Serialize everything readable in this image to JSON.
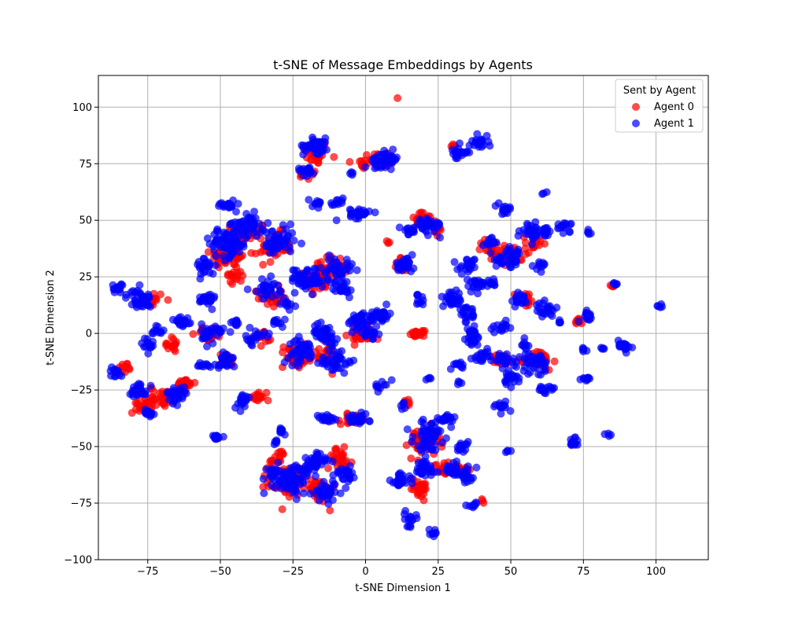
{
  "chart_data": {
    "type": "scatter",
    "title": "t-SNE of Message Embeddings by Agents",
    "xlabel": "t-SNE Dimension 1",
    "ylabel": "t-SNE Dimension 2",
    "xlim": [
      -92,
      118
    ],
    "ylim": [
      -100,
      114
    ],
    "xticks": [
      -75,
      -50,
      -25,
      0,
      25,
      50,
      75,
      100
    ],
    "yticks": [
      -100,
      -75,
      -50,
      -25,
      0,
      25,
      50,
      75,
      100
    ],
    "xtick_labels": [
      "−75",
      "−50",
      "−25",
      "0",
      "25",
      "50",
      "75",
      "100"
    ],
    "ytick_labels": [
      "−100",
      "−75",
      "−50",
      "−25",
      "0",
      "25",
      "50",
      "75",
      "100"
    ],
    "grid": true,
    "legend": {
      "title": "Sent by Agent",
      "position": "top-right"
    },
    "series": [
      {
        "name": "Agent 0",
        "color": "#ff0000",
        "clusters": [
          [
            -17,
            80,
            4,
            5,
            40
          ],
          [
            -20,
            70,
            3,
            2,
            12
          ],
          [
            6,
            77,
            4,
            3,
            40
          ],
          [
            -1,
            75,
            2,
            3,
            12
          ],
          [
            -47,
            35,
            6,
            6,
            60
          ],
          [
            -40,
            45,
            5,
            4,
            40
          ],
          [
            -31,
            38,
            5,
            6,
            40
          ],
          [
            -33,
            16,
            4,
            4,
            30
          ],
          [
            -16,
            25,
            5,
            6,
            40
          ],
          [
            -10,
            30,
            4,
            4,
            30
          ],
          [
            -25,
            -10,
            4,
            5,
            30
          ],
          [
            -14,
            -10,
            5,
            5,
            30
          ],
          [
            -2,
            0,
            4,
            4,
            20
          ],
          [
            1,
            -2,
            2,
            2,
            10
          ],
          [
            18,
            0,
            2,
            1,
            20
          ],
          [
            8,
            40,
            1,
            1,
            3
          ],
          [
            20,
            50,
            4,
            3,
            30
          ],
          [
            25,
            45,
            2,
            2,
            10
          ],
          [
            -62,
            -22,
            3,
            2,
            20
          ],
          [
            -70,
            -28,
            4,
            4,
            30
          ],
          [
            -77,
            -32,
            3,
            3,
            20
          ],
          [
            -67,
            -5,
            2,
            3,
            15
          ],
          [
            -83,
            -15,
            2,
            2,
            10
          ],
          [
            -73,
            15,
            3,
            3,
            15
          ],
          [
            -36,
            -28,
            3,
            3,
            15
          ],
          [
            -27,
            -65,
            6,
            6,
            60
          ],
          [
            -16,
            -70,
            5,
            5,
            40
          ],
          [
            -9,
            -55,
            4,
            4,
            30
          ],
          [
            -4,
            -38,
            4,
            2,
            20
          ],
          [
            20,
            -48,
            5,
            6,
            50
          ],
          [
            18,
            -68,
            4,
            4,
            30
          ],
          [
            27,
            -60,
            3,
            3,
            20
          ],
          [
            33,
            -60,
            3,
            3,
            20
          ],
          [
            50,
            35,
            5,
            4,
            30
          ],
          [
            55,
            15,
            3,
            3,
            20
          ],
          [
            58,
            40,
            3,
            3,
            15
          ],
          [
            60,
            -12,
            4,
            4,
            30
          ],
          [
            47,
            -12,
            3,
            3,
            20
          ],
          [
            43,
            38,
            3,
            3,
            15
          ],
          [
            73,
            5,
            2,
            2,
            8
          ],
          [
            85,
            21,
            1,
            1,
            4
          ],
          [
            40,
            -74,
            1,
            1,
            3
          ],
          [
            13,
            30,
            3,
            3,
            20
          ],
          [
            -54,
            0,
            4,
            3,
            20
          ],
          [
            -48,
            -12,
            3,
            3,
            15
          ],
          [
            -35,
            -2,
            3,
            3,
            15
          ],
          [
            -30,
            -55,
            3,
            3,
            15
          ],
          [
            -45,
            25,
            3,
            3,
            15
          ],
          [
            30,
            83,
            2,
            1,
            5
          ],
          [
            14,
            -30,
            2,
            2,
            8
          ]
        ],
        "points": [
          [
            11,
            104
          ],
          [
            -47,
            45
          ]
        ]
      },
      {
        "name": "Agent 1",
        "color": "#0000ff",
        "clusters": [
          [
            -17,
            83,
            4,
            3,
            50
          ],
          [
            -20,
            72,
            3,
            2,
            20
          ],
          [
            -10,
            58,
            2,
            2,
            10
          ],
          [
            -2,
            53,
            3,
            2,
            25
          ],
          [
            -17,
            58,
            2,
            2,
            10
          ],
          [
            7,
            77,
            4,
            3,
            50
          ],
          [
            4,
            75,
            2,
            2,
            15
          ],
          [
            32,
            80,
            3,
            3,
            20
          ],
          [
            39,
            85,
            3,
            3,
            20
          ],
          [
            -5,
            70,
            1,
            1,
            4
          ],
          [
            -47,
            40,
            6,
            6,
            80
          ],
          [
            -48,
            57,
            3,
            2,
            20
          ],
          [
            -40,
            48,
            5,
            4,
            50
          ],
          [
            -30,
            40,
            5,
            6,
            50
          ],
          [
            -55,
            30,
            3,
            4,
            25
          ],
          [
            -20,
            24,
            5,
            5,
            50
          ],
          [
            -10,
            28,
            5,
            5,
            40
          ],
          [
            -34,
            20,
            4,
            4,
            30
          ],
          [
            -27,
            13,
            2,
            2,
            10
          ],
          [
            -8,
            20,
            3,
            3,
            20
          ],
          [
            -78,
            15,
            4,
            4,
            40
          ],
          [
            -85,
            20,
            2,
            2,
            15
          ],
          [
            -72,
            2,
            2,
            2,
            10
          ],
          [
            -75,
            -5,
            2,
            3,
            15
          ],
          [
            -63,
            5,
            3,
            3,
            20
          ],
          [
            -55,
            15,
            3,
            3,
            25
          ],
          [
            -52,
            0,
            4,
            4,
            30
          ],
          [
            -45,
            5,
            2,
            2,
            10
          ],
          [
            -38,
            -2,
            3,
            3,
            20
          ],
          [
            -30,
            5,
            2,
            2,
            10
          ],
          [
            -48,
            -12,
            3,
            4,
            25
          ],
          [
            -56,
            -14,
            2,
            2,
            10
          ],
          [
            -65,
            -27,
            3,
            3,
            30
          ],
          [
            -78,
            -25,
            3,
            3,
            25
          ],
          [
            -86,
            -17,
            2,
            2,
            15
          ],
          [
            -75,
            -35,
            2,
            2,
            15
          ],
          [
            -42,
            -30,
            3,
            3,
            20
          ],
          [
            -52,
            -46,
            2,
            1,
            15
          ],
          [
            -22,
            -8,
            4,
            5,
            50
          ],
          [
            -14,
            0,
            4,
            4,
            40
          ],
          [
            -10,
            -12,
            5,
            5,
            40
          ],
          [
            -2,
            5,
            4,
            4,
            40
          ],
          [
            5,
            8,
            3,
            3,
            30
          ],
          [
            2,
            0,
            2,
            2,
            15
          ],
          [
            5,
            -23,
            2,
            2,
            10
          ],
          [
            -3,
            -38,
            4,
            2,
            30
          ],
          [
            -14,
            -38,
            3,
            2,
            20
          ],
          [
            -29,
            -43,
            2,
            2,
            10
          ],
          [
            -31,
            -48,
            1,
            1,
            5
          ],
          [
            -25,
            -65,
            6,
            6,
            80
          ],
          [
            -18,
            -57,
            4,
            4,
            40
          ],
          [
            -13,
            -70,
            5,
            4,
            40
          ],
          [
            -7,
            -62,
            3,
            3,
            25
          ],
          [
            -32,
            -62,
            2,
            2,
            15
          ],
          [
            22,
            -45,
            5,
            6,
            60
          ],
          [
            20,
            -60,
            4,
            4,
            40
          ],
          [
            12,
            -65,
            3,
            3,
            25
          ],
          [
            30,
            -60,
            3,
            3,
            25
          ],
          [
            35,
            -63,
            3,
            3,
            20
          ],
          [
            33,
            -50,
            2,
            2,
            15
          ],
          [
            28,
            -38,
            3,
            2,
            20
          ],
          [
            15,
            -82,
            2,
            3,
            15
          ],
          [
            23,
            -88,
            2,
            2,
            8
          ],
          [
            37,
            -76,
            2,
            1,
            8
          ],
          [
            13,
            -32,
            1,
            1,
            5
          ],
          [
            13,
            30,
            3,
            3,
            30
          ],
          [
            18,
            15,
            2,
            2,
            10
          ],
          [
            22,
            48,
            4,
            3,
            40
          ],
          [
            15,
            45,
            2,
            2,
            15
          ],
          [
            30,
            15,
            3,
            3,
            30
          ],
          [
            35,
            8,
            3,
            3,
            20
          ],
          [
            37,
            0,
            2,
            2,
            15
          ],
          [
            35,
            30,
            3,
            3,
            20
          ],
          [
            43,
            40,
            2,
            2,
            15
          ],
          [
            38,
            22,
            3,
            3,
            20
          ],
          [
            43,
            22,
            2,
            2,
            10
          ],
          [
            50,
            33,
            5,
            4,
            40
          ],
          [
            48,
            55,
            2,
            2,
            15
          ],
          [
            57,
            45,
            3,
            3,
            30
          ],
          [
            62,
            45,
            2,
            2,
            15
          ],
          [
            60,
            30,
            2,
            2,
            10
          ],
          [
            53,
            15,
            3,
            3,
            20
          ],
          [
            62,
            10,
            3,
            3,
            25
          ],
          [
            47,
            3,
            2,
            2,
            15
          ],
          [
            40,
            -10,
            3,
            3,
            20
          ],
          [
            48,
            -12,
            3,
            3,
            25
          ],
          [
            58,
            -13,
            4,
            4,
            40
          ],
          [
            55,
            -5,
            2,
            2,
            10
          ],
          [
            50,
            -20,
            3,
            3,
            20
          ],
          [
            62,
            -25,
            3,
            2,
            15
          ],
          [
            47,
            -32,
            2,
            2,
            15
          ],
          [
            32,
            -14,
            2,
            2,
            10
          ],
          [
            37,
            -3,
            2,
            2,
            10
          ],
          [
            68,
            47,
            3,
            2,
            15
          ],
          [
            77,
            45,
            1,
            1,
            5
          ],
          [
            76,
            8,
            2,
            2,
            15
          ],
          [
            75,
            -7,
            1,
            1,
            5
          ],
          [
            76,
            -20,
            2,
            1,
            10
          ],
          [
            71,
            -48,
            2,
            2,
            15
          ],
          [
            82,
            -7,
            1,
            1,
            4
          ],
          [
            89,
            -5,
            2,
            2,
            20
          ],
          [
            101,
            12,
            1,
            1,
            5
          ],
          [
            86,
            22,
            1,
            1,
            5
          ],
          [
            49,
            -52,
            1,
            1,
            4
          ],
          [
            83,
            -45,
            1,
            1,
            4
          ],
          [
            33,
            -22,
            1,
            1,
            4
          ],
          [
            22,
            -20,
            1,
            1,
            4
          ],
          [
            67,
            5,
            1,
            1,
            4
          ],
          [
            62,
            62,
            1,
            1,
            3
          ]
        ],
        "points": [
          [
            -25,
            28
          ],
          [
            -10,
            50
          ]
        ]
      }
    ]
  }
}
